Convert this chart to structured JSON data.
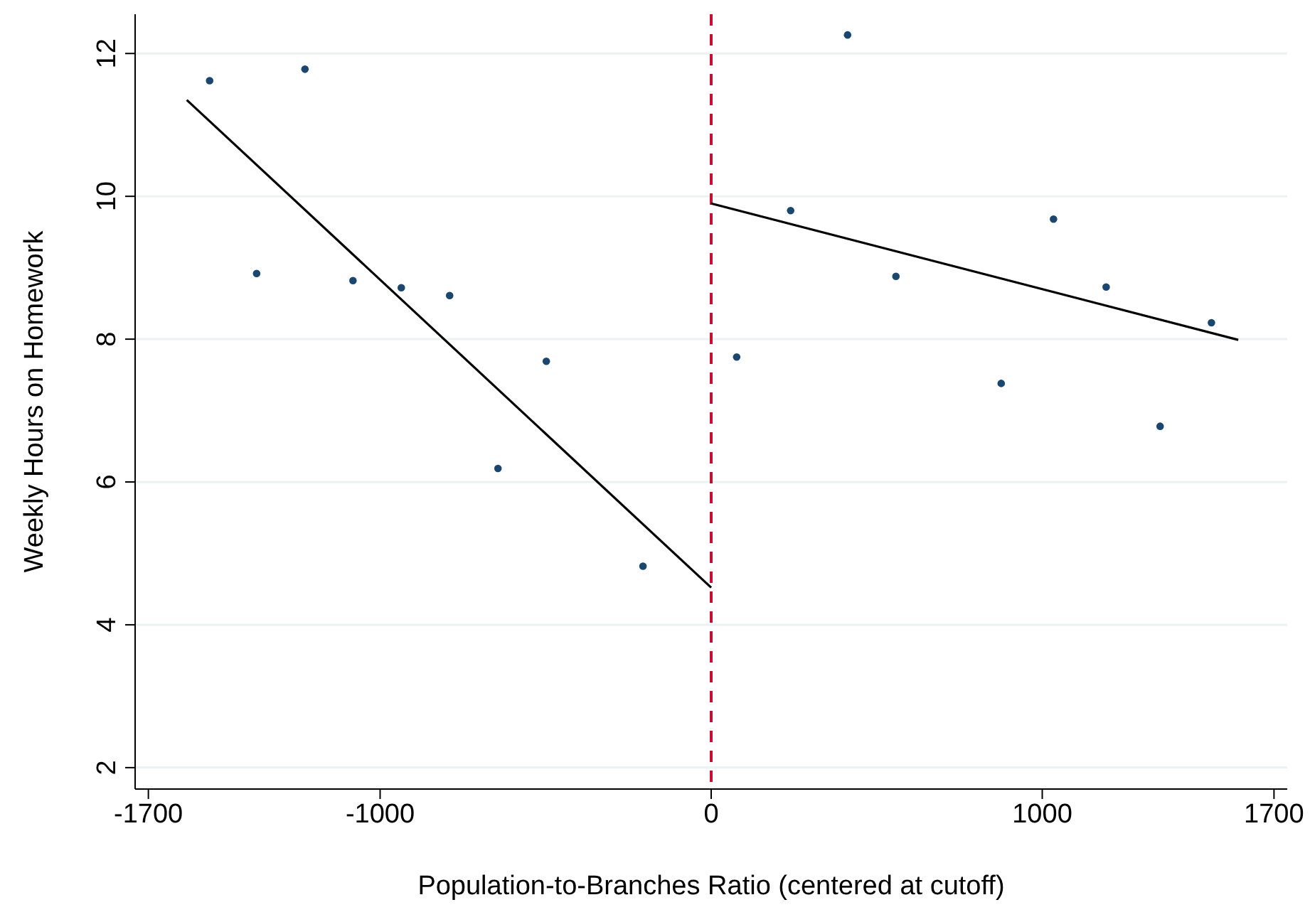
{
  "chart_data": {
    "type": "scatter",
    "xlabel": "Population-to-Branches Ratio (centered at cutoff)",
    "ylabel": "Weekly Hours on Homework",
    "xlim": [
      -1740,
      1740
    ],
    "ylim": [
      1.7,
      12.55
    ],
    "xticks": [
      -1700,
      -1000,
      0,
      1000,
      1700
    ],
    "yticks": [
      2,
      4,
      6,
      8,
      10,
      12
    ],
    "grid": "y",
    "ref_lines": [
      {
        "axis": "x",
        "value": 0,
        "color": "#c8102e",
        "line_style": "dashed"
      }
    ],
    "series": [
      {
        "color": "#1a476f",
        "marker": "circle",
        "x": [
          -1515,
          -1373,
          -1227,
          -1082,
          -936,
          -790,
          -644,
          -498,
          -206,
          77,
          240,
          412,
          558,
          876,
          1034,
          1193,
          1356,
          1511
        ],
        "values": [
          11.62,
          8.92,
          11.78,
          8.82,
          8.72,
          8.61,
          6.19,
          7.69,
          4.82,
          7.75,
          9.8,
          12.26,
          8.88,
          7.38,
          9.68,
          8.73,
          6.78,
          8.23
        ]
      },
      {
        "type": "line",
        "color": "#000000",
        "x": [
          -1584,
          0
        ],
        "values": [
          11.35,
          4.52
        ]
      },
      {
        "type": "line",
        "color": "#000000",
        "x": [
          0,
          1592
        ],
        "values": [
          9.9,
          7.99
        ]
      }
    ]
  }
}
